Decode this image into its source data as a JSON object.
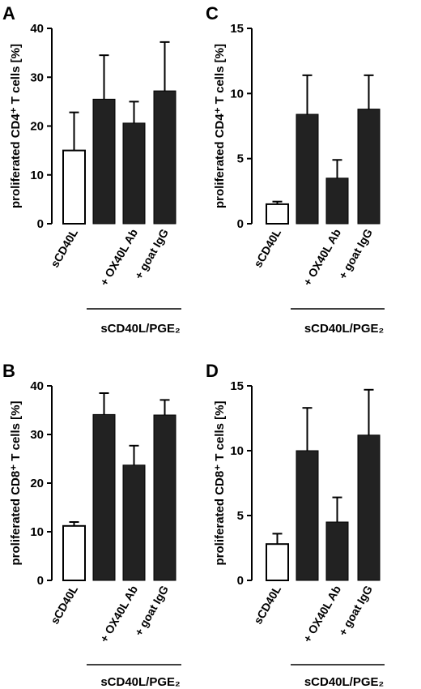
{
  "chart_data": [
    {
      "panel": "A",
      "type": "bar",
      "ylabel": "proliferated CD4⁺ T cells [%]",
      "ylim": [
        0,
        40
      ],
      "yticks": [
        0,
        10,
        20,
        30,
        40
      ],
      "categories": [
        "sCD40L",
        "",
        "+ OX40L Ab",
        "+ goat IgG"
      ],
      "values": [
        15.0,
        25.5,
        20.6,
        27.2
      ],
      "errors": [
        7.8,
        9.0,
        4.4,
        10.0
      ],
      "fills": [
        "white",
        "black",
        "black",
        "black"
      ],
      "group_label": "sCD40L/PGE₂"
    },
    {
      "panel": "C",
      "type": "bar",
      "ylabel": "proliferated CD4⁺ T cells [%]",
      "ylim": [
        0,
        15
      ],
      "yticks": [
        0,
        5,
        10,
        15
      ],
      "categories": [
        "sCD40L",
        "",
        "+ OX40L Ab",
        "+ goat IgG"
      ],
      "values": [
        1.5,
        8.4,
        3.5,
        8.8
      ],
      "errors": [
        0.2,
        3.0,
        1.4,
        2.6
      ],
      "fills": [
        "white",
        "black",
        "black",
        "black"
      ],
      "group_label": "sCD40L/PGE₂"
    },
    {
      "panel": "B",
      "type": "bar",
      "ylabel": "proliferated CD8⁺ T cells [%]",
      "ylim": [
        0,
        40
      ],
      "yticks": [
        0,
        10,
        20,
        30,
        40
      ],
      "categories": [
        "sCD40L",
        "",
        "+ OX40L Ab",
        "+ goat IgG"
      ],
      "values": [
        11.2,
        34.1,
        23.7,
        34.0
      ],
      "errors": [
        0.8,
        4.4,
        4.0,
        3.1
      ],
      "fills": [
        "white",
        "black",
        "black",
        "black"
      ],
      "group_label": "sCD40L/PGE₂"
    },
    {
      "panel": "D",
      "type": "bar",
      "ylabel": "proliferated CD8⁺ T cells [%]",
      "ylim": [
        0,
        15
      ],
      "yticks": [
        0,
        5,
        10,
        15
      ],
      "categories": [
        "sCD40L",
        "",
        "+ OX40L Ab",
        "+ goat IgG"
      ],
      "values": [
        2.8,
        10.0,
        4.5,
        11.2
      ],
      "errors": [
        0.8,
        3.3,
        1.9,
        3.5
      ],
      "fills": [
        "white",
        "black",
        "black",
        "black"
      ],
      "group_label": "sCD40L/PGE₂"
    }
  ],
  "colors": {
    "bar_dark": "#222222",
    "bar_light": "#ffffff",
    "axis": "#000000"
  }
}
